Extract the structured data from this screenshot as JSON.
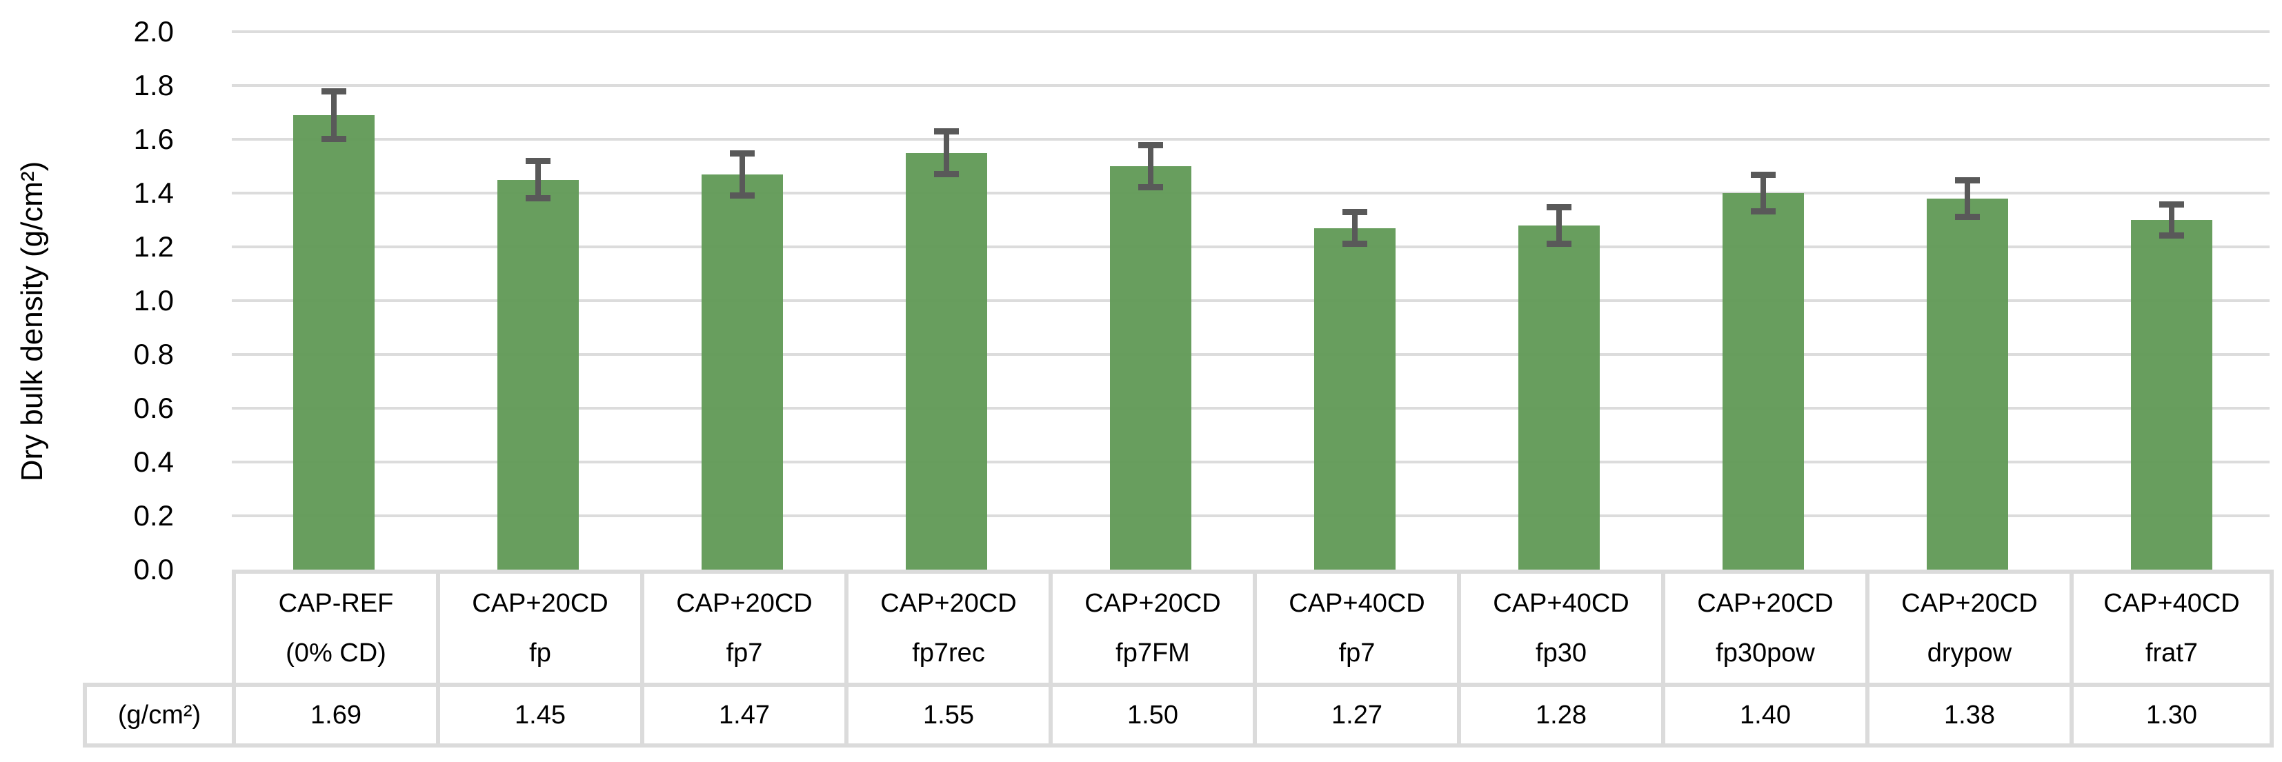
{
  "chart": {
    "background": "#ffffff",
    "bar_color": "#629a57",
    "error_bar_color": "#595959",
    "gridline_color": "#dcdcdc",
    "table_border_color": "#dbdbdb",
    "text_color": "#000000"
  },
  "chart_data": {
    "type": "bar",
    "title": "",
    "xlabel": "",
    "ylabel": "Dry bulk density (g/cm²)",
    "ylim": [
      0.0,
      2.0
    ],
    "ytick_step": 0.2,
    "yticks": [
      "2.0",
      "1.8",
      "1.6",
      "1.4",
      "1.2",
      "1.0",
      "0.8",
      "0.6",
      "0.4",
      "0.2",
      "0.0"
    ],
    "grid": true,
    "legend": false,
    "categories": [
      {
        "line1": "CAP-REF",
        "line2": "(0% CD)"
      },
      {
        "line1": "CAP+20CD",
        "line2": "fp"
      },
      {
        "line1": "CAP+20CD",
        "line2": "fp7"
      },
      {
        "line1": "CAP+20CD",
        "line2": "fp7rec"
      },
      {
        "line1": "CAP+20CD",
        "line2": "fp7FM"
      },
      {
        "line1": "CAP+40CD",
        "line2": "fp7"
      },
      {
        "line1": "CAP+40CD",
        "line2": "fp30"
      },
      {
        "line1": "CAP+20CD",
        "line2": "fp30pow"
      },
      {
        "line1": "CAP+20CD",
        "line2": "drypow"
      },
      {
        "line1": "CAP+40CD",
        "line2": "frat7"
      }
    ],
    "values": [
      1.69,
      1.45,
      1.47,
      1.55,
      1.5,
      1.27,
      1.28,
      1.4,
      1.38,
      1.3
    ],
    "value_labels": [
      "1.69",
      "1.45",
      "1.47",
      "1.55",
      "1.50",
      "1.27",
      "1.28",
      "1.40",
      "1.38",
      "1.30"
    ],
    "errors": [
      0.09,
      0.07,
      0.08,
      0.08,
      0.08,
      0.06,
      0.07,
      0.07,
      0.07,
      0.06
    ],
    "table_row_label": "(g/cm²)"
  }
}
